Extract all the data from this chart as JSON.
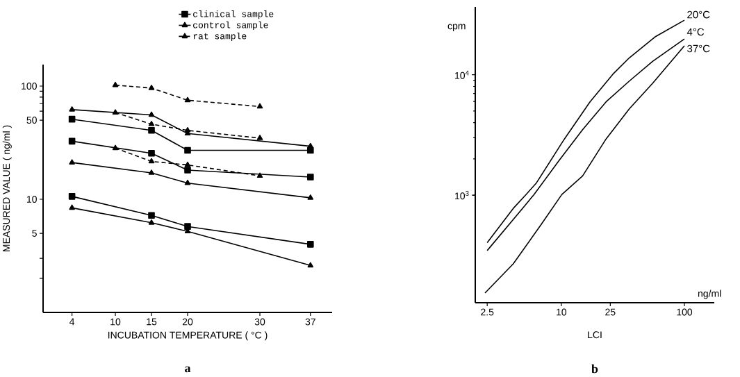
{
  "chart_data": [
    {
      "type": "line",
      "xlabel": "INCUBATION TEMPERATURE  ( °C )",
      "ylabel": "MEASURED VALUE  ( ng/ml )",
      "log": "y",
      "grid": false,
      "legend": "top right",
      "xlim": [
        0,
        40
      ],
      "xticks": [
        4,
        10,
        15,
        20,
        30,
        37
      ],
      "ylim": [
        1,
        155
      ],
      "yticks": [
        {
          "value": 2,
          "label": null
        },
        {
          "value": 3,
          "label": null
        },
        5,
        10,
        50,
        {
          "value": 60,
          "label": null
        },
        {
          "value": 70,
          "label": null
        },
        {
          "value": 80,
          "label": null
        },
        {
          "value": 90,
          "label": null
        },
        100
      ],
      "series": [
        {
          "name": "clinical sample",
          "color": "#000000",
          "marker": "square",
          "line_style": "solid",
          "x": [
            4,
            15,
            20,
            37
          ],
          "values": [
            51,
            40.6,
            27.1,
            27.1
          ]
        },
        {
          "color": "#000000",
          "marker": "square",
          "line_style": "solid",
          "x": [
            4,
            15,
            20,
            37
          ],
          "values": [
            32.6,
            25.5,
            18.1,
            15.7
          ]
        },
        {
          "color": "#000000",
          "marker": "square",
          "line_style": "solid",
          "x": [
            4,
            15,
            20,
            37
          ],
          "values": [
            10.6,
            7.2,
            5.75,
            4.0
          ]
        },
        {
          "name": "control sample",
          "color": "#000000",
          "marker": "triangle",
          "line_style": "solid",
          "x": [
            4,
            15,
            20,
            37
          ],
          "values": [
            62,
            55.7,
            38.1,
            29.4
          ]
        },
        {
          "color": "#000000",
          "marker": "triangle",
          "line_style": "solid",
          "x": [
            4,
            15,
            20,
            37
          ],
          "values": [
            21.1,
            17.1,
            13.9,
            10.3
          ]
        },
        {
          "color": "#000000",
          "marker": "triangle",
          "line_style": "solid",
          "x": [
            4,
            15,
            20,
            37
          ],
          "values": [
            8.4,
            6.2,
            5.2,
            2.6
          ]
        },
        {
          "name": "rat sample",
          "color": "#000000",
          "marker": "triangle",
          "line_style": "dashed",
          "x": [
            10,
            15,
            20,
            30
          ],
          "values": [
            102,
            96,
            75,
            66
          ]
        },
        {
          "color": "#000000",
          "marker": "triangle",
          "line_style": "dashed",
          "x": [
            10,
            15,
            20,
            30
          ],
          "values": [
            58.3,
            46.1,
            40.6,
            34.7
          ]
        },
        {
          "color": "#000000",
          "marker": "triangle",
          "line_style": "dashed",
          "x": [
            10,
            15,
            20,
            30
          ],
          "values": [
            28.3,
            21.6,
            20.1,
            16.1
          ]
        }
      ],
      "annotations": [
        "a"
      ]
    },
    {
      "type": "line",
      "xlabel": "LCI",
      "ylabel": "cpm",
      "log": "xy",
      "grid": false,
      "legend": false,
      "xlim": [
        2,
        175
      ],
      "xticks": [
        2.5,
        10,
        25,
        100
      ],
      "ylim": [
        128,
        36600
      ],
      "yticks": [
        {
          "value": 1000,
          "label": "10$^{3}$"
        },
        {
          "value": 10000,
          "label": "10$^{4}$"
        }
      ],
      "series": [
        {
          "name": "20°C",
          "color": "#000000",
          "x": [
            2.5,
            4.07,
            5.17,
            6.28,
            10.6,
            17.1,
            26.3,
            35.7,
            57.6,
            100
          ],
          "values": [
            404,
            777,
            1013,
            1265,
            2930,
            5960,
            10140,
            13830,
            20600,
            28400
          ]
        },
        {
          "name": "4°C",
          "color": "#000000",
          "x": [
            2.5,
            4.84,
            6.0,
            9.7,
            14.9,
            23.1,
            35.7,
            55.2,
            100
          ],
          "values": [
            347,
            777,
            1013,
            1970,
            3500,
            5960,
            8870,
            12930,
            19860
          ]
        },
        {
          "name": "37°C",
          "color": "#000000",
          "x": [
            2.4,
            4.07,
            6.85,
            10.1,
            14.9,
            23.1,
            35.7,
            55.2,
            100
          ],
          "values": [
            154,
            269,
            570,
            1013,
            1445,
            2930,
            5210,
            8490,
            17400
          ]
        }
      ],
      "annotations": [
        "ng/ml",
        "b"
      ]
    }
  ]
}
